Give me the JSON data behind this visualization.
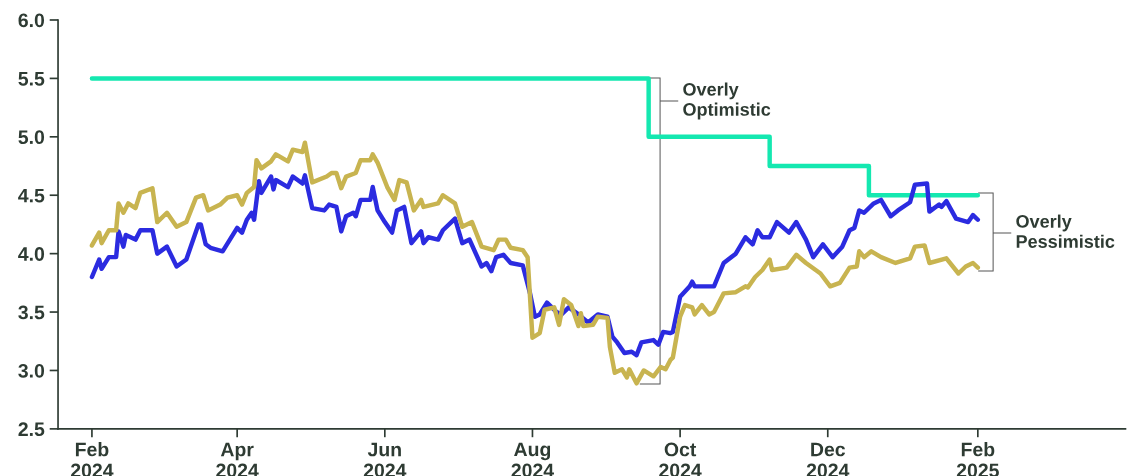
{
  "chart_data": {
    "type": "line",
    "xlim": [
      "2024-01-18",
      "2025-04-03"
    ],
    "xticks": [
      {
        "value": "2024-02-01",
        "label": "Feb\n2024"
      },
      {
        "value": "2024-04-01",
        "label": "Apr\n2024"
      },
      {
        "value": "2024-06-01",
        "label": "Jun\n2024"
      },
      {
        "value": "2024-08-01",
        "label": "Aug\n2024"
      },
      {
        "value": "2024-10-01",
        "label": "Oct\n2024"
      },
      {
        "value": "2024-12-01",
        "label": "Dec\n2024"
      },
      {
        "value": "2025-02-01",
        "label": "Feb\n2025"
      }
    ],
    "ylim": [
      2.5,
      6.0
    ],
    "yticks": [
      2.5,
      {
        "value": 3,
        "label": "3.0"
      },
      3.5,
      {
        "value": 4,
        "label": "4.0"
      },
      4.5,
      {
        "value": 5,
        "label": "5.0"
      },
      5.5,
      {
        "value": 6,
        "label": "6.0"
      }
    ],
    "grid": false,
    "legend": false,
    "series": [
      {
        "type": "step",
        "color": "#14e8b0",
        "x": [
          "2024-02-01",
          "2024-09-18",
          "2024-11-07",
          "2024-12-18",
          "2025-02-01"
        ],
        "values": [
          5.5,
          5.0,
          4.75,
          4.5,
          4.5
        ]
      },
      {
        "color": "#2b2be0",
        "x": [
          "2024-02-01",
          "2024-02-04",
          "2024-02-05",
          "2024-02-08",
          "2024-02-11",
          "2024-02-12",
          "2024-02-14",
          "2024-02-15",
          "2024-02-19",
          "2024-02-21",
          "2024-02-26",
          "2024-02-28",
          "2024-03-03",
          "2024-03-07",
          "2024-03-11",
          "2024-03-16",
          "2024-03-17",
          "2024-03-19",
          "2024-03-21",
          "2024-03-26",
          "2024-04-01",
          "2024-04-03",
          "2024-04-05",
          "2024-04-07",
          "2024-04-08",
          "2024-04-10",
          "2024-04-11",
          "2024-04-15",
          "2024-04-16",
          "2024-04-17",
          "2024-04-22",
          "2024-04-24",
          "2024-04-28",
          "2024-04-29",
          "2024-05-02",
          "2024-05-07",
          "2024-05-09",
          "2024-05-12",
          "2024-05-14",
          "2024-05-16",
          "2024-05-19",
          "2024-05-20",
          "2024-05-22",
          "2024-05-26",
          "2024-05-27",
          "2024-05-29",
          "2024-06-01",
          "2024-06-04",
          "2024-06-06",
          "2024-06-09",
          "2024-06-12",
          "2024-06-16",
          "2024-06-17",
          "2024-06-19",
          "2024-06-23",
          "2024-06-25",
          "2024-06-30",
          "2024-07-03",
          "2024-07-06",
          "2024-07-11",
          "2024-07-13",
          "2024-07-15",
          "2024-07-17",
          "2024-07-20",
          "2024-07-23",
          "2024-07-28",
          "2024-07-31",
          "2024-08-02",
          "2024-08-04",
          "2024-08-07",
          "2024-08-11",
          "2024-08-13",
          "2024-08-16",
          "2024-08-20",
          "2024-08-24",
          "2024-08-28",
          "2024-09-01",
          "2024-09-03",
          "2024-09-05",
          "2024-09-08",
          "2024-09-11",
          "2024-09-13",
          "2024-09-15",
          "2024-09-20",
          "2024-09-22",
          "2024-09-24",
          "2024-09-27",
          "2024-09-28",
          "2024-10-01",
          "2024-10-05",
          "2024-10-06",
          "2024-10-07",
          "2024-10-12",
          "2024-10-15",
          "2024-10-19",
          "2024-10-24",
          "2024-10-28",
          "2024-10-31",
          "2024-11-02",
          "2024-11-04",
          "2024-11-07",
          "2024-11-10",
          "2024-11-15",
          "2024-11-18",
          "2024-11-22",
          "2024-11-25",
          "2024-11-29",
          "2024-12-03",
          "2024-12-07",
          "2024-12-10",
          "2024-12-12",
          "2024-12-14",
          "2024-12-16",
          "2024-12-20",
          "2024-12-23",
          "2024-12-27",
          "2024-12-30",
          "2025-01-04",
          "2025-01-06",
          "2025-01-11",
          "2025-01-12",
          "2025-01-16",
          "2025-01-17",
          "2025-01-19",
          "2025-01-23",
          "2025-01-28",
          "2025-01-30",
          "2025-02-01"
        ],
        "values": [
          3.8,
          3.95,
          3.87,
          3.97,
          3.97,
          4.19,
          4.06,
          4.16,
          4.12,
          4.2,
          4.2,
          4.0,
          4.06,
          3.89,
          3.95,
          4.25,
          4.25,
          4.08,
          4.05,
          4.02,
          4.22,
          4.18,
          4.29,
          4.35,
          4.29,
          4.62,
          4.52,
          4.66,
          4.55,
          4.63,
          4.57,
          4.66,
          4.6,
          4.67,
          4.39,
          4.37,
          4.42,
          4.4,
          4.19,
          4.32,
          4.35,
          4.32,
          4.46,
          4.46,
          4.57,
          4.37,
          4.27,
          4.18,
          4.37,
          4.4,
          4.09,
          4.19,
          4.09,
          4.14,
          4.12,
          4.2,
          4.3,
          4.09,
          4.12,
          3.89,
          3.92,
          3.85,
          3.97,
          3.99,
          3.92,
          3.9,
          3.66,
          3.46,
          3.48,
          3.58,
          3.5,
          3.48,
          3.54,
          3.48,
          3.41,
          3.48,
          3.46,
          3.29,
          3.24,
          3.15,
          3.16,
          3.13,
          3.24,
          3.26,
          3.22,
          3.33,
          3.32,
          3.33,
          3.63,
          3.72,
          3.76,
          3.72,
          3.72,
          3.72,
          3.92,
          4.0,
          4.14,
          4.08,
          4.2,
          4.14,
          4.14,
          4.27,
          4.18,
          4.27,
          4.12,
          3.97,
          4.08,
          3.97,
          4.06,
          4.2,
          4.22,
          4.37,
          4.35,
          4.43,
          4.46,
          4.32,
          4.37,
          4.44,
          4.59,
          4.6,
          4.36,
          4.42,
          4.4,
          4.45,
          4.3,
          4.27,
          4.33,
          4.29
        ]
      },
      {
        "color": "#c8b450",
        "x": [
          "2024-02-01",
          "2024-02-04",
          "2024-02-05",
          "2024-02-08",
          "2024-02-11",
          "2024-02-12",
          "2024-02-14",
          "2024-02-16",
          "2024-02-19",
          "2024-02-21",
          "2024-02-26",
          "2024-02-28",
          "2024-03-03",
          "2024-03-07",
          "2024-03-11",
          "2024-03-15",
          "2024-03-18",
          "2024-03-20",
          "2024-03-25",
          "2024-03-28",
          "2024-04-01",
          "2024-04-03",
          "2024-04-05",
          "2024-04-08",
          "2024-04-09",
          "2024-04-11",
          "2024-04-15",
          "2024-04-17",
          "2024-04-22",
          "2024-04-24",
          "2024-04-28",
          "2024-04-29",
          "2024-05-02",
          "2024-05-08",
          "2024-05-10",
          "2024-05-12",
          "2024-05-14",
          "2024-05-16",
          "2024-05-20",
          "2024-05-22",
          "2024-05-26",
          "2024-05-27",
          "2024-05-29",
          "2024-06-02",
          "2024-06-05",
          "2024-06-07",
          "2024-06-10",
          "2024-06-13",
          "2024-06-16",
          "2024-06-17",
          "2024-06-23",
          "2024-06-25",
          "2024-06-30",
          "2024-07-03",
          "2024-07-07",
          "2024-07-11",
          "2024-07-16",
          "2024-07-18",
          "2024-07-21",
          "2024-07-23",
          "2024-07-28",
          "2024-07-30",
          "2024-08-01",
          "2024-08-04",
          "2024-08-06",
          "2024-08-10",
          "2024-08-12",
          "2024-08-14",
          "2024-08-17",
          "2024-08-20",
          "2024-08-21",
          "2024-08-22",
          "2024-08-26",
          "2024-08-28",
          "2024-09-01",
          "2024-09-02",
          "2024-09-04",
          "2024-09-07",
          "2024-09-09",
          "2024-09-10",
          "2024-09-13",
          "2024-09-16",
          "2024-09-20",
          "2024-09-23",
          "2024-09-25",
          "2024-09-27",
          "2024-09-28",
          "2024-10-01",
          "2024-10-03",
          "2024-10-06",
          "2024-10-07",
          "2024-10-10",
          "2024-10-13",
          "2024-10-15",
          "2024-10-19",
          "2024-10-24",
          "2024-10-28",
          "2024-10-29",
          "2024-11-01",
          "2024-11-04",
          "2024-11-07",
          "2024-11-08",
          "2024-11-14",
          "2024-11-18",
          "2024-11-22",
          "2024-11-28",
          "2024-12-02",
          "2024-12-06",
          "2024-12-10",
          "2024-12-13",
          "2024-12-14",
          "2024-12-16",
          "2024-12-19",
          "2024-12-23",
          "2024-12-29",
          "2025-01-04",
          "2025-01-06",
          "2025-01-10",
          "2025-01-12",
          "2025-01-19",
          "2025-01-24",
          "2025-01-27",
          "2025-01-30",
          "2025-02-01"
        ],
        "values": [
          4.07,
          4.18,
          4.09,
          4.2,
          4.2,
          4.43,
          4.35,
          4.43,
          4.39,
          4.52,
          4.56,
          4.27,
          4.35,
          4.23,
          4.27,
          4.48,
          4.5,
          4.37,
          4.42,
          4.48,
          4.5,
          4.42,
          4.52,
          4.57,
          4.8,
          4.73,
          4.79,
          4.85,
          4.79,
          4.89,
          4.87,
          4.95,
          4.61,
          4.66,
          4.69,
          4.69,
          4.56,
          4.66,
          4.69,
          4.8,
          4.8,
          4.85,
          4.78,
          4.57,
          4.46,
          4.63,
          4.61,
          4.37,
          4.46,
          4.4,
          4.43,
          4.5,
          4.43,
          4.23,
          4.27,
          4.06,
          4.03,
          4.12,
          4.12,
          4.05,
          4.03,
          3.97,
          3.28,
          3.32,
          3.52,
          3.54,
          3.39,
          3.61,
          3.56,
          3.38,
          3.49,
          3.38,
          3.39,
          3.46,
          3.45,
          3.2,
          2.98,
          3.01,
          2.94,
          3.01,
          2.89,
          3.0,
          2.95,
          3.03,
          3.01,
          3.09,
          3.11,
          3.46,
          3.56,
          3.54,
          3.48,
          3.56,
          3.48,
          3.5,
          3.66,
          3.67,
          3.72,
          3.71,
          3.8,
          3.86,
          3.95,
          3.86,
          3.88,
          3.99,
          3.92,
          3.83,
          3.72,
          3.75,
          3.88,
          3.89,
          4.02,
          3.97,
          4.02,
          3.97,
          3.92,
          3.96,
          4.06,
          4.07,
          3.92,
          3.96,
          3.83,
          3.89,
          3.92,
          3.88
        ]
      }
    ],
    "annotations": [
      "Overly\nOptimistic",
      "Overly\nPessimistic"
    ]
  }
}
